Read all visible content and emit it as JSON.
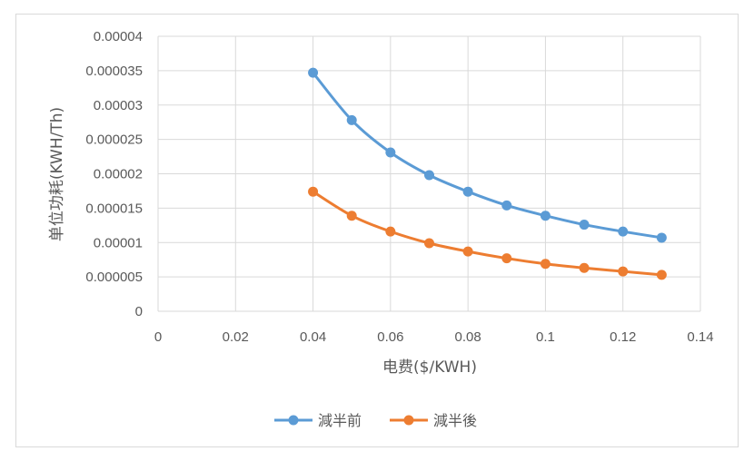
{
  "chart_data": {
    "type": "line",
    "title": "",
    "xlabel": "电费($/KWH)",
    "ylabel": "单位功耗(KWH/Th)",
    "xlim": [
      0,
      0.14
    ],
    "ylim": [
      0,
      4e-05
    ],
    "x_ticks": [
      "0",
      "0.02",
      "0.04",
      "0.06",
      "0.08",
      "0.1",
      "0.12",
      "0.14"
    ],
    "x_tick_values": [
      0,
      0.02,
      0.04,
      0.06,
      0.08,
      0.1,
      0.12,
      0.14
    ],
    "y_ticks": [
      "0",
      "0.000005",
      "0.00001",
      "0.000015",
      "0.00002",
      "0.000025",
      "0.00003",
      "0.000035",
      "0.00004"
    ],
    "y_tick_values": [
      0,
      5e-06,
      1e-05,
      1.5e-05,
      2e-05,
      2.5e-05,
      3e-05,
      3.5e-05,
      4e-05
    ],
    "grid": true,
    "legend_position": "bottom",
    "smooth": true,
    "markers": "circle",
    "x": [
      0.04,
      0.05,
      0.06,
      0.07,
      0.08,
      0.09,
      0.1,
      0.11,
      0.12,
      0.13
    ],
    "series": [
      {
        "name": "減半前",
        "color": "#5B9BD5",
        "values": [
          3.47e-05,
          2.78e-05,
          2.31e-05,
          1.98e-05,
          1.74e-05,
          1.54e-05,
          1.39e-05,
          1.26e-05,
          1.16e-05,
          1.07e-05
        ]
      },
      {
        "name": "減半後",
        "color": "#ED7D31",
        "values": [
          1.74e-05,
          1.39e-05,
          1.16e-05,
          9.9e-06,
          8.7e-06,
          7.7e-06,
          6.9e-06,
          6.3e-06,
          5.8e-06,
          5.3e-06
        ]
      }
    ]
  },
  "colors": {
    "grid": "#d9d9d9",
    "text": "#595959",
    "border": "#d9d9d9"
  }
}
